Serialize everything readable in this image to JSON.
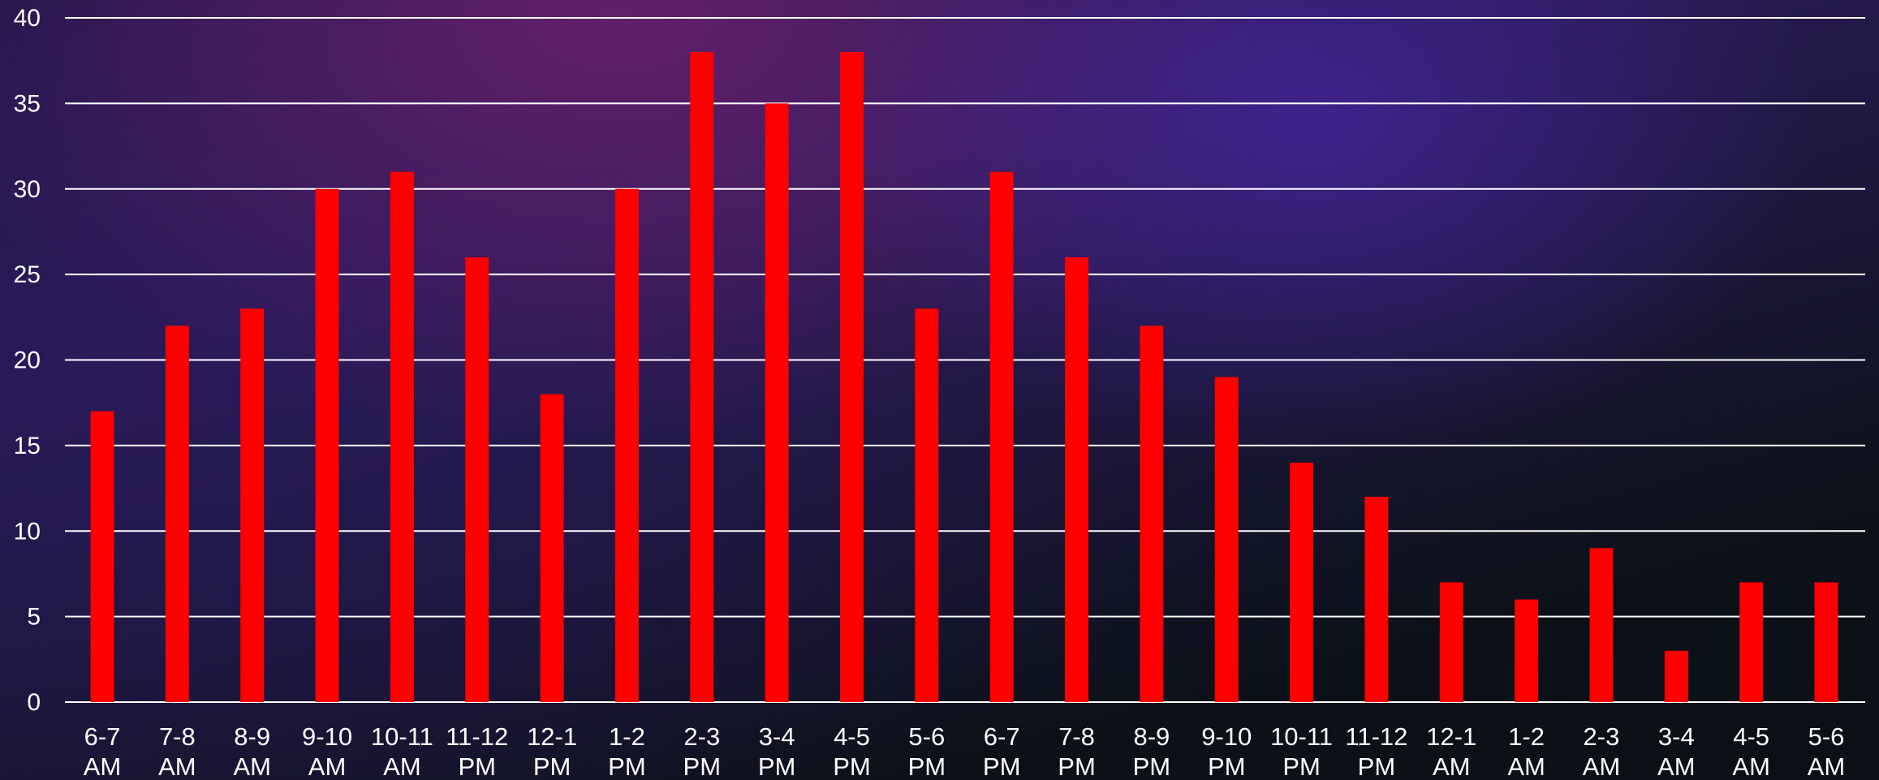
{
  "chart_data": {
    "type": "bar",
    "title": "",
    "xlabel": "",
    "ylabel": "",
    "ylim": [
      0,
      40
    ],
    "yticks": [
      0,
      5,
      10,
      15,
      20,
      25,
      30,
      35,
      40
    ],
    "grid": true,
    "legend": "none",
    "categories": [
      "6-7 AM",
      "7-8 AM",
      "8-9 AM",
      "9-10 AM",
      "10-11 AM",
      "11-12 PM",
      "12-1 PM",
      "1-2 PM",
      "2-3 PM",
      "3-4 PM",
      "4-5 PM",
      "5-6 PM",
      "6-7 PM",
      "7-8 PM",
      "8-9 PM",
      "9-10 PM",
      "10-11 PM",
      "11-12 PM",
      "12-1 AM",
      "1-2 AM",
      "2-3 AM",
      "3-4 AM",
      "4-5 AM",
      "5-6 AM"
    ],
    "values": [
      17,
      22,
      23,
      30,
      31,
      26,
      18,
      30,
      38,
      35,
      38,
      23,
      31,
      26,
      22,
      19,
      14,
      12,
      7,
      6,
      9,
      3,
      7,
      7
    ],
    "colors": {
      "bar": "#ff0000",
      "grid": "#ffffff",
      "text": "#ffffff"
    }
  }
}
